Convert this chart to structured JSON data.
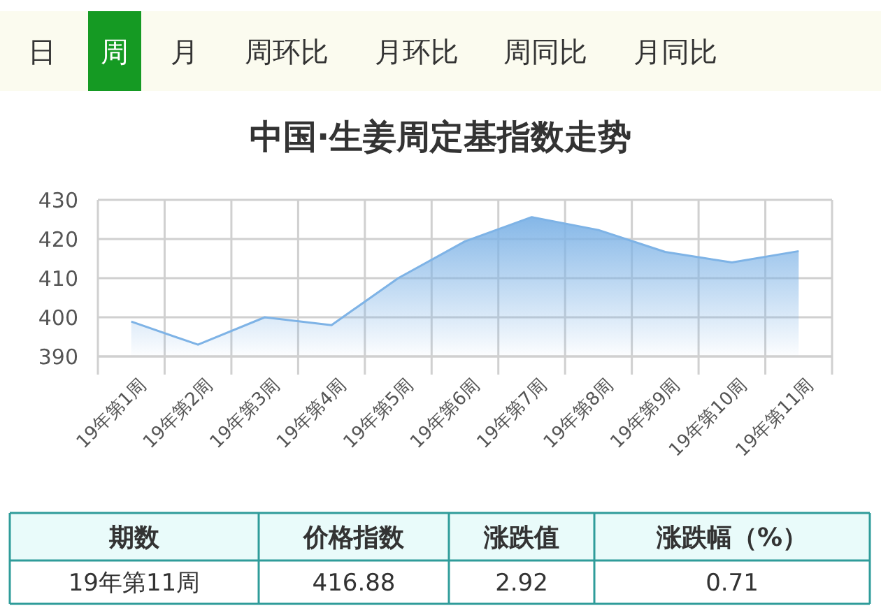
{
  "chart_data": [
    {
      "type": "other",
      "annotations": [
        "日",
        "周",
        "月",
        "周环比",
        "月环比",
        "周同比",
        "月同比"
      ]
    },
    {
      "type": "area",
      "title": "中国·生姜周定基指数走势",
      "categories": [
        "19年第1周",
        "19年第2周",
        "19年第3周",
        "19年第4周",
        "19年第5周",
        "19年第6周",
        "19年第7周",
        "19年第8周",
        "19年第9周",
        "19年第10周",
        "19年第11周"
      ],
      "series": [
        {
          "color": "#7eb3e6",
          "values": [
            398.9,
            393,
            400,
            398,
            410,
            419.4,
            425.6,
            422.3,
            416.7,
            414,
            416.9
          ]
        }
      ],
      "ylim": [
        390,
        430
      ],
      "yticks": [
        390,
        400,
        410,
        420,
        430
      ],
      "grid": true
    },
    {
      "type": "other",
      "annotations": [
        "期数",
        "价格指数",
        "涨跌值",
        "涨跌幅（%）",
        "19年第11周",
        "416.88",
        "2.92",
        "0.71"
      ]
    }
  ]
}
